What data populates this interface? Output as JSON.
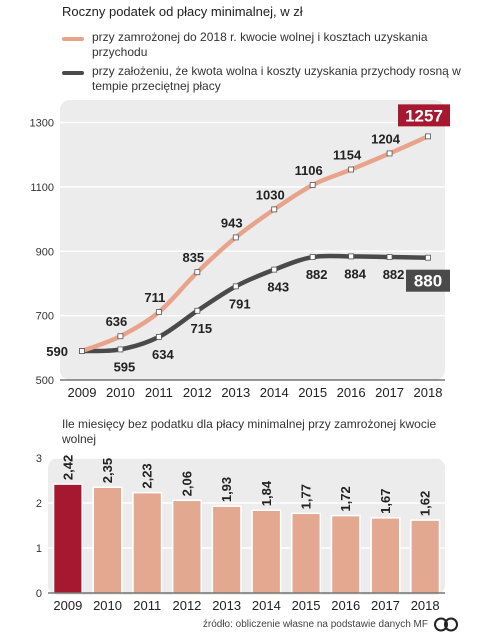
{
  "chart_data": [
    {
      "type": "line",
      "title": "Roczny podatek od płacy minimalnej, w zł",
      "x": [
        "2009",
        "2010",
        "2011",
        "2012",
        "2013",
        "2014",
        "2015",
        "2016",
        "2017",
        "2018"
      ],
      "yticks": [
        "500",
        "700",
        "900",
        "1100",
        "1300"
      ],
      "ylim": [
        500,
        1370
      ],
      "legend_placement": "top",
      "series": [
        {
          "name": "przy zamrożonej do 2018 r. kwocie wolnej i kosztach uzyskania przychodu",
          "color": "#e8a48b",
          "values": [
            590,
            636,
            711,
            835,
            943,
            1030,
            1106,
            1154,
            1204,
            1257
          ],
          "labels": [
            "590",
            "636",
            "711",
            "835",
            "943",
            "1030",
            "1106",
            "1154",
            "1204",
            "1257"
          ]
        },
        {
          "name": "przy założeniu, że kwota wolna i koszty uzyskania przychody rosną w tempie przeciętnej płacy",
          "color": "#4a4a4a",
          "values": [
            590,
            595,
            634,
            715,
            791,
            843,
            882,
            884,
            882,
            880
          ],
          "labels": [
            "590",
            "595",
            "634",
            "715",
            "791",
            "843",
            "882",
            "884",
            "882",
            "880"
          ]
        }
      ],
      "highlight_colors": {
        "top": "#a6182f",
        "bottom": "#4a4a4a"
      }
    },
    {
      "type": "bar",
      "title": "Ile miesięcy bez podatku dla płacy minimalnej przy zamrożonej kwocie wolnej",
      "categories": [
        "2009",
        "2010",
        "2011",
        "2012",
        "2013",
        "2014",
        "2015",
        "2016",
        "2017",
        "2018"
      ],
      "values": [
        2.42,
        2.35,
        2.23,
        2.06,
        1.93,
        1.84,
        1.77,
        1.72,
        1.67,
        1.62
      ],
      "labels": [
        "2,42",
        "2,35",
        "2,23",
        "2,06",
        "1,93",
        "1,84",
        "1,77",
        "1,72",
        "1,67",
        "1,62"
      ],
      "yticks": [
        "0",
        "1",
        "2",
        "3"
      ],
      "ylim": [
        0,
        3
      ],
      "bar_color": "#e2a890",
      "highlight_color": "#a6182f"
    }
  ],
  "footer": {
    "source": "źródło: obliczenie własne na podstawie danych MF"
  }
}
